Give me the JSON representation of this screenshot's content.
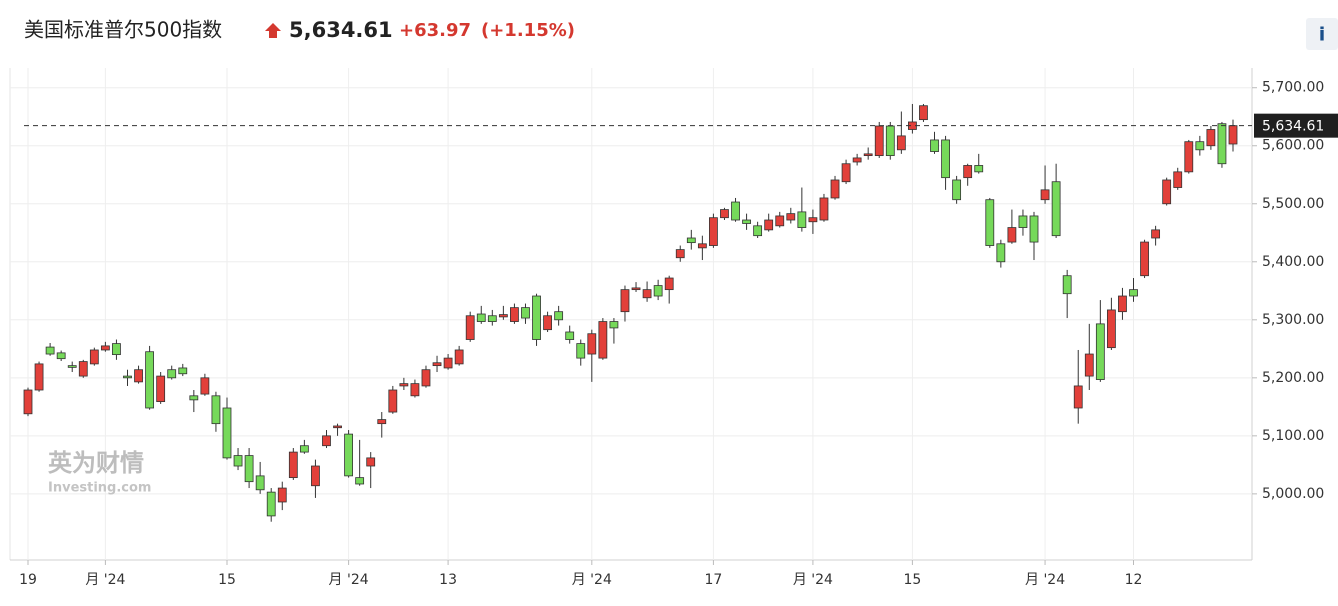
{
  "chart_data": {
    "type": "candlestick",
    "title": "美国标准普尔500指数",
    "last_price": {
      "value": 5634.61,
      "label": "5,634.61"
    },
    "change": "+63.97",
    "change_pct": "(+1.15%)",
    "info_icon": "i",
    "watermark": [
      "英为财情",
      "Investing.com"
    ],
    "up_color": "#e2403a",
    "down_color": "#76d95a",
    "border_color": "#333333",
    "grid": true,
    "ylim": [
      4886,
      5734
    ],
    "yticks": [
      {
        "value": 5000,
        "label": "5,000.00"
      },
      {
        "value": 5100,
        "label": "5,100.00"
      },
      {
        "value": 5200,
        "label": "5,200.00"
      },
      {
        "value": 5300,
        "label": "5,300.00"
      },
      {
        "value": 5400,
        "label": "5,400.00"
      },
      {
        "value": 5500,
        "label": "5,500.00"
      },
      {
        "value": 5600,
        "label": "5,600.00"
      },
      {
        "value": 5700,
        "label": "5,700.00"
      }
    ],
    "categories": [
      "19",
      null,
      null,
      null,
      null,
      null,
      null,
      "月 '24",
      null,
      null,
      null,
      null,
      null,
      null,
      null,
      null,
      null,
      null,
      "15",
      null,
      null,
      null,
      null,
      null,
      null,
      null,
      null,
      null,
      null,
      "月 '24",
      null,
      null,
      null,
      null,
      null,
      null,
      null,
      null,
      "13",
      null,
      null,
      null,
      null,
      null,
      null,
      null,
      null,
      null,
      null,
      null,
      null,
      "月 '24",
      null,
      null,
      null,
      null,
      null,
      null,
      null,
      null,
      null,
      null,
      "17",
      null,
      null,
      null,
      null,
      null,
      null,
      null,
      null,
      "月 '24",
      null,
      null,
      null,
      null,
      null,
      null,
      null,
      null,
      "15",
      null,
      null,
      null,
      null,
      null,
      null,
      null,
      null,
      null,
      null,
      null,
      "月 '24",
      null,
      null,
      null,
      null,
      null,
      null,
      null,
      "12",
      null,
      null,
      null,
      null,
      null,
      null,
      null,
      null,
      null
    ],
    "open": [
      5138,
      5179,
      5253,
      5243,
      5221,
      5203,
      5224,
      5248,
      5259,
      5203,
      5193,
      5245,
      5159,
      5214,
      5217,
      5169,
      5172,
      5169,
      5148,
      5066,
      5066,
      5031,
      5003,
      4986,
      5028,
      5083,
      5014,
      5083,
      5114,
      5103,
      5028,
      5048,
      5121,
      5141,
      5186,
      5169,
      5186,
      5221,
      5217,
      5224,
      5266,
      5310,
      5307,
      5305,
      5297,
      5321,
      5341,
      5283,
      5314,
      5279,
      5259,
      5241,
      5234,
      5297,
      5314,
      5352,
      5338,
      5359,
      5352,
      5407,
      5441,
      5424,
      5428,
      5476,
      5503,
      5472,
      5462,
      5455,
      5462,
      5472,
      5486,
      5469,
      5472,
      5510,
      5538,
      5572,
      5583,
      5583,
      5634,
      5593,
      5628,
      5645,
      5610,
      5610,
      5541,
      5545,
      5566,
      5507,
      5431,
      5434,
      5479,
      5479,
      5507,
      5538,
      5376,
      5148,
      5203,
      5293,
      5252,
      5314,
      5352,
      5376,
      5441,
      5500,
      5528,
      5555,
      5607,
      5600,
      5638,
      5603
    ],
    "high": [
      5183,
      5228,
      5260,
      5247,
      5228,
      5231,
      5252,
      5262,
      5266,
      5214,
      5221,
      5255,
      5210,
      5221,
      5224,
      5179,
      5207,
      5176,
      5166,
      5079,
      5079,
      5055,
      5010,
      5021,
      5079,
      5093,
      5059,
      5110,
      5121,
      5110,
      5093,
      5072,
      5141,
      5186,
      5200,
      5197,
      5221,
      5238,
      5241,
      5255,
      5314,
      5324,
      5317,
      5324,
      5328,
      5328,
      5345,
      5314,
      5324,
      5290,
      5266,
      5283,
      5303,
      5303,
      5359,
      5365,
      5366,
      5369,
      5376,
      5428,
      5455,
      5445,
      5483,
      5493,
      5510,
      5483,
      5469,
      5483,
      5486,
      5493,
      5528,
      5490,
      5517,
      5548,
      5576,
      5586,
      5597,
      5641,
      5641,
      5659,
      5672,
      5672,
      5624,
      5617,
      5548,
      5569,
      5586,
      5510,
      5438,
      5490,
      5490,
      5486,
      5566,
      5569,
      5386,
      5248,
      5293,
      5334,
      5338,
      5355,
      5372,
      5438,
      5462,
      5545,
      5562,
      5610,
      5617,
      5634,
      5641,
      5645
    ],
    "low": [
      5134,
      5176,
      5238,
      5229,
      5210,
      5200,
      5221,
      5245,
      5231,
      5186,
      5190,
      5145,
      5155,
      5197,
      5203,
      5141,
      5169,
      5107,
      5059,
      5041,
      5010,
      5000,
      4952,
      4972,
      5024,
      5069,
      4993,
      5079,
      5100,
      5028,
      5014,
      5010,
      5097,
      5138,
      5179,
      5166,
      5183,
      5210,
      5214,
      5221,
      5262,
      5293,
      5290,
      5300,
      5293,
      5293,
      5255,
      5279,
      5290,
      5259,
      5221,
      5193,
      5231,
      5259,
      5297,
      5348,
      5331,
      5334,
      5328,
      5400,
      5421,
      5403,
      5424,
      5472,
      5469,
      5455,
      5441,
      5452,
      5459,
      5466,
      5452,
      5448,
      5469,
      5507,
      5534,
      5566,
      5576,
      5579,
      5576,
      5586,
      5621,
      5641,
      5586,
      5524,
      5500,
      5531,
      5552,
      5424,
      5390,
      5431,
      5445,
      5403,
      5500,
      5441,
      5303,
      5121,
      5179,
      5193,
      5248,
      5300,
      5331,
      5372,
      5428,
      5497,
      5524,
      5552,
      5583,
      5593,
      5562,
      5590
    ],
    "close": [
      5179,
      5224,
      5241,
      5233,
      5218,
      5228,
      5248,
      5255,
      5240,
      5200,
      5214,
      5148,
      5203,
      5200,
      5207,
      5162,
      5200,
      5121,
      5062,
      5048,
      5021,
      5007,
      4962,
      5010,
      5072,
      5072,
      5048,
      5100,
      5117,
      5031,
      5017,
      5062,
      5128,
      5179,
      5190,
      5190,
      5214,
      5226,
      5234,
      5248,
      5307,
      5297,
      5297,
      5309,
      5321,
      5303,
      5266,
      5307,
      5300,
      5266,
      5234,
      5276,
      5297,
      5286,
      5352,
      5355,
      5352,
      5341,
      5372,
      5421,
      5433,
      5431,
      5476,
      5490,
      5472,
      5466,
      5445,
      5472,
      5479,
      5483,
      5459,
      5476,
      5510,
      5541,
      5569,
      5579,
      5586,
      5634,
      5583,
      5617,
      5641,
      5669,
      5590,
      5545,
      5507,
      5566,
      5555,
      5428,
      5400,
      5459,
      5459,
      5434,
      5524,
      5445,
      5345,
      5186,
      5241,
      5197,
      5317,
      5341,
      5341,
      5434,
      5455,
      5541,
      5555,
      5607,
      5593,
      5628,
      5569,
      5634.61
    ]
  }
}
